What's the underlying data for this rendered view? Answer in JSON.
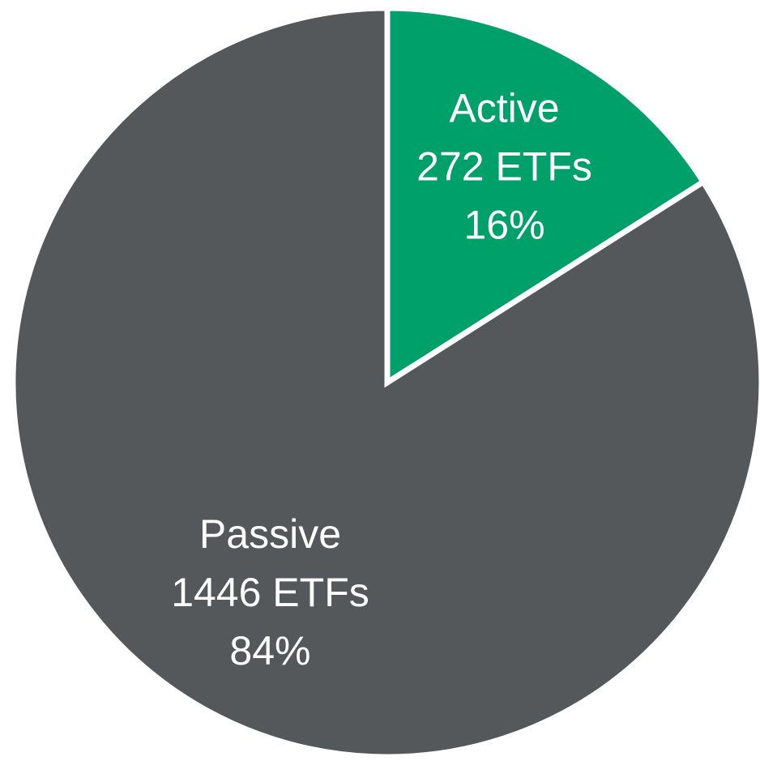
{
  "chart_data": {
    "type": "pie",
    "categories": [
      "Active",
      "Passive"
    ],
    "annotations": [
      "272 ETFs",
      "1446 ETFs"
    ],
    "values": [
      16,
      84
    ],
    "value_labels": [
      "16%",
      "84%"
    ],
    "colors": [
      "#00a06a",
      "#54585a"
    ]
  }
}
